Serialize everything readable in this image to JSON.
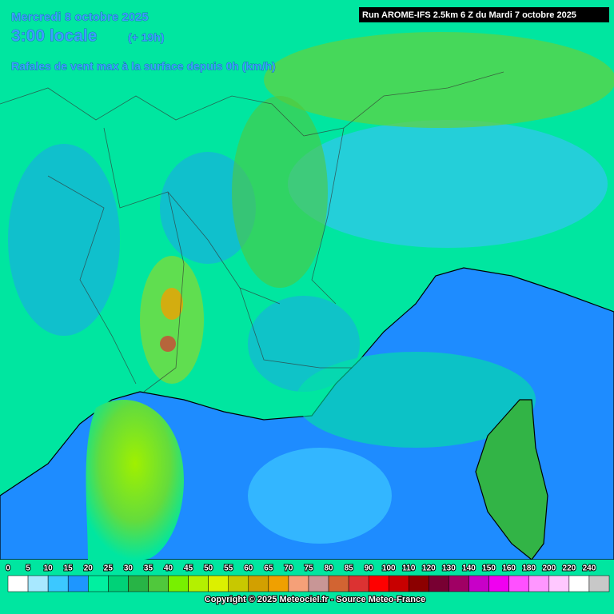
{
  "header": {
    "date": "Mercredi 8 octobre 2025",
    "time": "3:00 locale",
    "offset": "(+ 19h)",
    "parameter": "Rafales de vent max à la surface depuis 0h (km/h)",
    "run": "Run AROME-IFS 2.5km 6 Z du Mardi 7 octobre 2025"
  },
  "legend": {
    "items": [
      {
        "value": 0,
        "color": "#ffffff"
      },
      {
        "value": 5,
        "color": "#a8e8ff"
      },
      {
        "value": 10,
        "color": "#3cc8ff"
      },
      {
        "value": 15,
        "color": "#1e96ff"
      },
      {
        "value": 20,
        "color": "#00f0a0"
      },
      {
        "value": 25,
        "color": "#00d278"
      },
      {
        "value": 30,
        "color": "#28b446"
      },
      {
        "value": 35,
        "color": "#50c83c"
      },
      {
        "value": 40,
        "color": "#78f000"
      },
      {
        "value": 45,
        "color": "#b4f000"
      },
      {
        "value": 50,
        "color": "#dcf000"
      },
      {
        "value": 55,
        "color": "#c8c800"
      },
      {
        "value": 60,
        "color": "#d2a000"
      },
      {
        "value": 65,
        "color": "#f0a000"
      },
      {
        "value": 70,
        "color": "#f5a078"
      },
      {
        "value": 75,
        "color": "#c89696"
      },
      {
        "value": 80,
        "color": "#d26432"
      },
      {
        "value": 85,
        "color": "#dc3232"
      },
      {
        "value": 90,
        "color": "#ff0000"
      },
      {
        "value": 100,
        "color": "#c80000"
      },
      {
        "value": 110,
        "color": "#8c0000"
      },
      {
        "value": 120,
        "color": "#780032"
      },
      {
        "value": 130,
        "color": "#a00064"
      },
      {
        "value": 140,
        "color": "#c800c8"
      },
      {
        "value": 150,
        "color": "#f000f0"
      },
      {
        "value": 160,
        "color": "#ff50ff"
      },
      {
        "value": 180,
        "color": "#ff96ff"
      },
      {
        "value": 200,
        "color": "#ffc8ff"
      },
      {
        "value": 220,
        "color": "#ffffff"
      },
      {
        "value": 240,
        "color": "#c8c8c8"
      }
    ]
  },
  "footer": {
    "copyright": "Copyright © 2025 Meteociel.fr - Source Meteo-France"
  }
}
